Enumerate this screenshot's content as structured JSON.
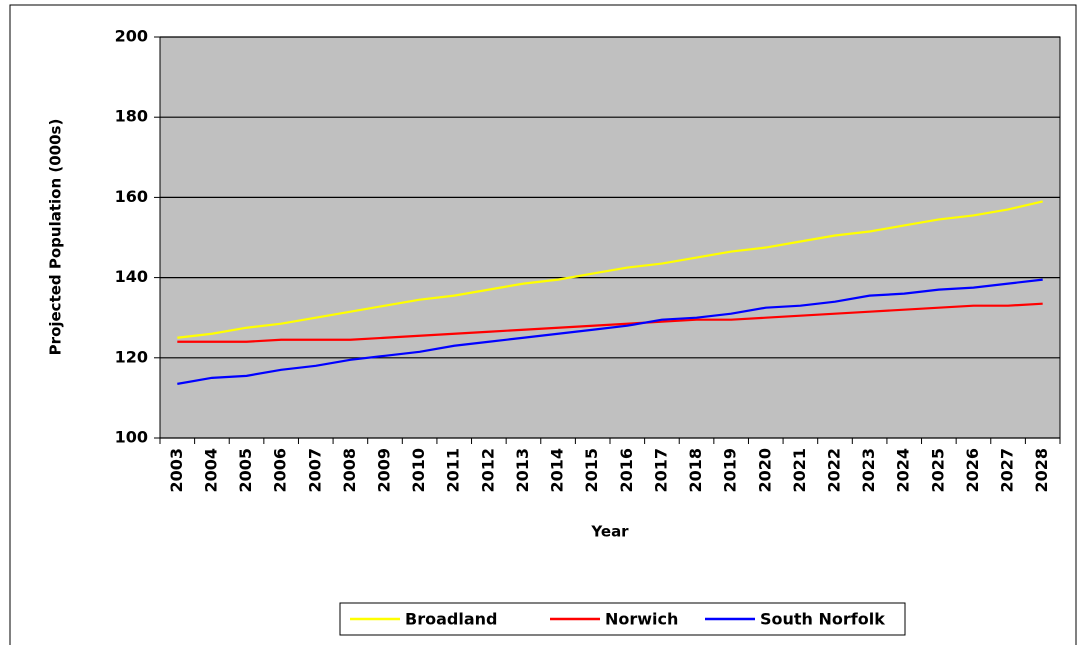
{
  "chart_data": {
    "type": "line",
    "xlabel": "Year",
    "ylabel": "Projected Population (000s)",
    "categories": [
      "2003",
      "2004",
      "2005",
      "2006",
      "2007",
      "2008",
      "2009",
      "2010",
      "2011",
      "2012",
      "2013",
      "2014",
      "2015",
      "2016",
      "2017",
      "2018",
      "2019",
      "2020",
      "2021",
      "2022",
      "2023",
      "2024",
      "2025",
      "2026",
      "2027",
      "2028"
    ],
    "series": [
      {
        "name": "Broadland",
        "color": "#ffff00",
        "values": [
          125,
          126,
          127.5,
          128.5,
          130,
          131.5,
          133,
          134.5,
          135.5,
          137,
          138.5,
          139.5,
          141,
          142.5,
          143.5,
          145,
          146.5,
          147.5,
          149,
          150.5,
          151.5,
          153,
          154.5,
          155.5,
          157,
          159
        ]
      },
      {
        "name": "Norwich",
        "color": "#ff0000",
        "values": [
          124,
          124,
          124,
          124.5,
          124.5,
          124.5,
          125,
          125.5,
          126,
          126.5,
          127,
          127.5,
          128,
          128.5,
          129,
          129.5,
          129.5,
          130,
          130.5,
          131,
          131.5,
          132,
          132.5,
          133,
          133,
          133.5
        ]
      },
      {
        "name": "South Norfolk",
        "color": "#0000ff",
        "values": [
          113.5,
          115,
          115.5,
          117,
          118,
          119.5,
          120.5,
          121.5,
          123,
          124,
          125,
          126,
          127,
          128,
          129.5,
          130,
          131,
          132.5,
          133,
          134,
          135.5,
          136,
          137,
          137.5,
          138.5,
          139.5
        ]
      }
    ],
    "ylim": [
      100,
      200
    ],
    "yticks": [
      100,
      120,
      140,
      160,
      180,
      200
    ],
    "grid": true,
    "plot_background": "#c0c0c0",
    "legend": "bottom"
  }
}
